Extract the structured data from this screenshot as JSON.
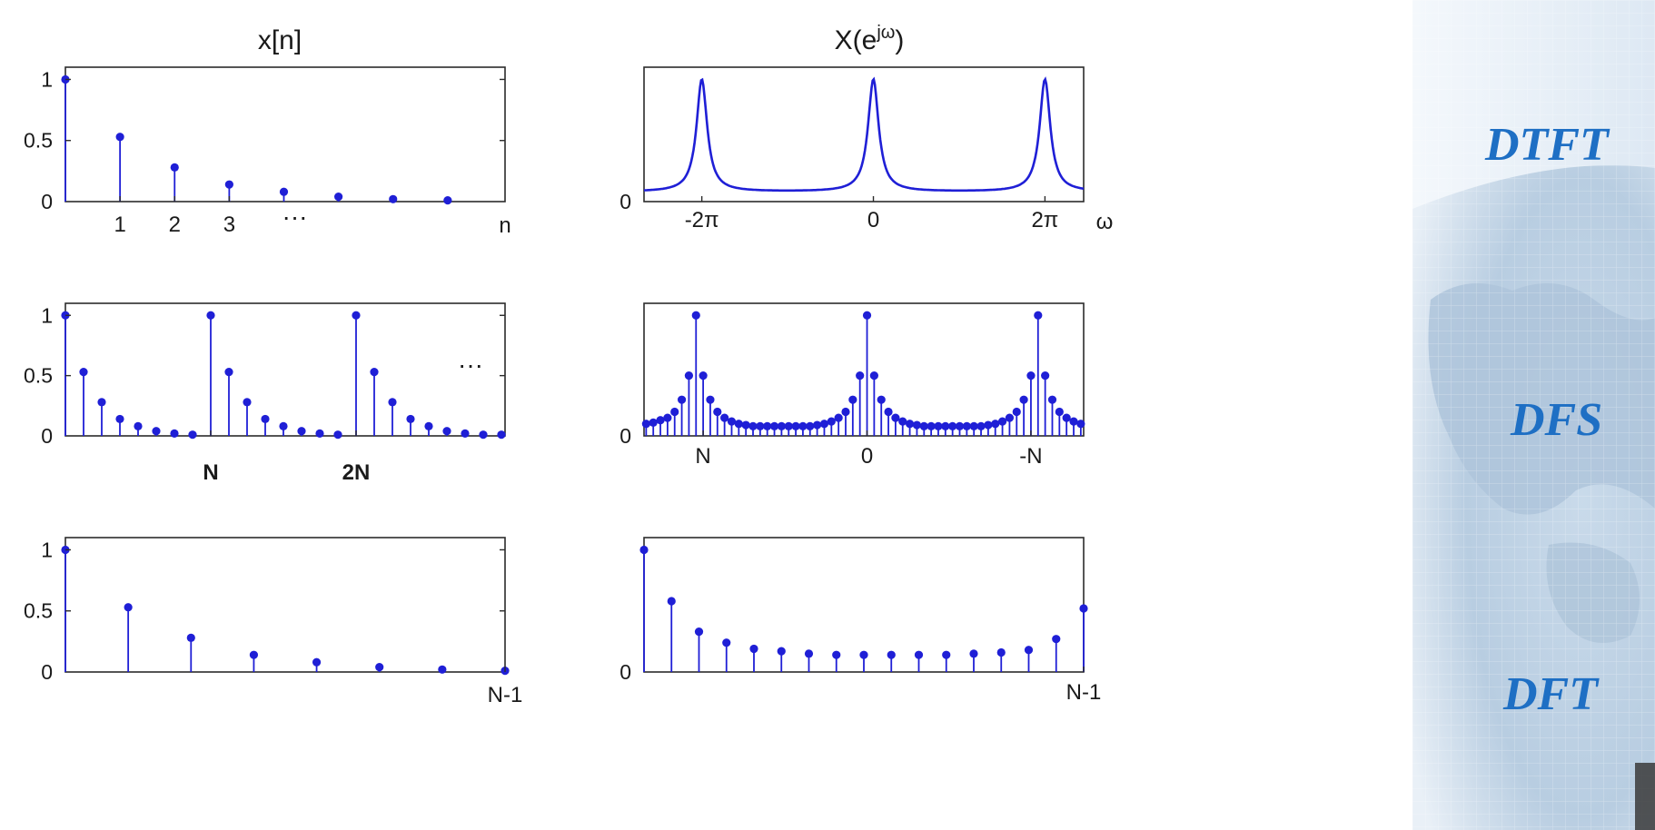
{
  "colors": {
    "stem": "#1f1fd6",
    "axis": "#2b2b2b",
    "side_label": "#1e6fc4"
  },
  "side_labels": [
    "DTFT",
    "DFS",
    "DFT"
  ],
  "chart_data": [
    {
      "id": "xn_aperiodic",
      "type": "stem",
      "title": "x[n]",
      "xlabel": "n",
      "ylim": [
        0,
        1.1
      ],
      "y_ticks": [
        "0",
        "0.5",
        "1"
      ],
      "x_ticks": [
        {
          "x": 1,
          "label": "1"
        },
        {
          "x": 2,
          "label": "2"
        },
        {
          "x": 3,
          "label": "3"
        }
      ],
      "ellipsis": "···",
      "x": [
        0,
        1,
        2,
        3,
        4,
        5,
        6,
        7
      ],
      "values": [
        1,
        0.53,
        0.28,
        0.14,
        0.08,
        0.04,
        0.02,
        0.01
      ]
    },
    {
      "id": "X_dtft",
      "type": "line",
      "title": "X(ejω)",
      "title_base": "X(e",
      "title_sup": "jω",
      "title_end": ")",
      "xlabel": "ω",
      "y_ticks": [
        "0"
      ],
      "x_ticks": [
        {
          "x": -6.283,
          "label": "-2π"
        },
        {
          "x": 0,
          "label": "0"
        },
        {
          "x": 6.283,
          "label": "2π"
        }
      ],
      "xlim": [
        -8.4,
        7.7
      ],
      "ylim": [
        0,
        1.1
      ],
      "peaks_at": [
        -6.283,
        0,
        6.283
      ],
      "peak_value": 1.0,
      "floor_value": 0.08
    },
    {
      "id": "xn_periodic",
      "type": "stem",
      "y_ticks": [
        "0",
        "0.5",
        "1"
      ],
      "x_ticks": [
        {
          "x": 8,
          "label": "N"
        },
        {
          "x": 16,
          "label": "2N"
        }
      ],
      "ellipsis": "···",
      "ylim": [
        0,
        1.1
      ],
      "x": [
        0,
        1,
        2,
        3,
        4,
        5,
        6,
        7,
        8,
        9,
        10,
        11,
        12,
        13,
        14,
        15,
        16,
        17,
        18,
        19,
        20,
        21,
        22,
        23,
        24
      ],
      "values": [
        1,
        0.53,
        0.28,
        0.14,
        0.08,
        0.04,
        0.02,
        0.01,
        1,
        0.53,
        0.28,
        0.14,
        0.08,
        0.04,
        0.02,
        0.01,
        1,
        0.53,
        0.28,
        0.14,
        0.08,
        0.04,
        0.02,
        0.01,
        0.01
      ]
    },
    {
      "id": "X_dfs",
      "type": "stem",
      "y_ticks": [
        "0"
      ],
      "x_ticks": [
        {
          "x": 8,
          "label": "N"
        },
        {
          "x": 31,
          "label": "0"
        },
        {
          "x": 54,
          "label": "-N"
        }
      ],
      "ylim": [
        0,
        1.1
      ],
      "x": [
        0,
        1,
        2,
        3,
        4,
        5,
        6,
        7,
        8,
        9,
        10,
        11,
        12,
        13,
        14,
        15,
        16,
        17,
        18,
        19,
        20,
        21,
        22,
        23,
        24,
        25,
        26,
        27,
        28,
        29,
        30,
        31,
        32,
        33,
        34,
        35,
        36,
        37,
        38,
        39,
        40,
        41,
        42,
        43,
        44,
        45,
        46,
        47,
        48,
        49,
        50,
        51,
        52,
        53,
        54,
        55,
        56,
        57,
        58,
        59,
        60,
        61
      ],
      "values": [
        0.1,
        0.11,
        0.13,
        0.15,
        0.2,
        0.3,
        0.5,
        1.0,
        0.5,
        0.3,
        0.2,
        0.15,
        0.12,
        0.1,
        0.09,
        0.08,
        0.08,
        0.08,
        0.08,
        0.08,
        0.08,
        0.08,
        0.08,
        0.08,
        0.09,
        0.1,
        0.12,
        0.15,
        0.2,
        0.3,
        0.5,
        1.0,
        0.5,
        0.3,
        0.2,
        0.15,
        0.12,
        0.1,
        0.09,
        0.08,
        0.08,
        0.08,
        0.08,
        0.08,
        0.08,
        0.08,
        0.08,
        0.08,
        0.09,
        0.1,
        0.12,
        0.15,
        0.2,
        0.3,
        0.5,
        1.0,
        0.5,
        0.3,
        0.2,
        0.15,
        0.12,
        0.1
      ]
    },
    {
      "id": "xn_finite",
      "type": "stem",
      "y_ticks": [
        "0",
        "0.5",
        "1"
      ],
      "x_ticks": [
        {
          "x": 7,
          "label": "N-1"
        }
      ],
      "ylim": [
        0,
        1.1
      ],
      "x": [
        0,
        1,
        2,
        3,
        4,
        5,
        6,
        7
      ],
      "values": [
        1,
        0.53,
        0.28,
        0.14,
        0.08,
        0.04,
        0.02,
        0.01
      ]
    },
    {
      "id": "X_dft",
      "type": "stem",
      "y_ticks": [
        "0"
      ],
      "x_ticks": [
        {
          "x": 16,
          "label": "N-1"
        }
      ],
      "ylim": [
        0,
        1.1
      ],
      "x": [
        0,
        1,
        2,
        3,
        4,
        5,
        6,
        7,
        8,
        9,
        10,
        11,
        12,
        13,
        14,
        15,
        16
      ],
      "values": [
        1.0,
        0.58,
        0.33,
        0.24,
        0.19,
        0.17,
        0.15,
        0.14,
        0.14,
        0.14,
        0.14,
        0.14,
        0.15,
        0.16,
        0.18,
        0.27,
        0.52
      ]
    }
  ]
}
